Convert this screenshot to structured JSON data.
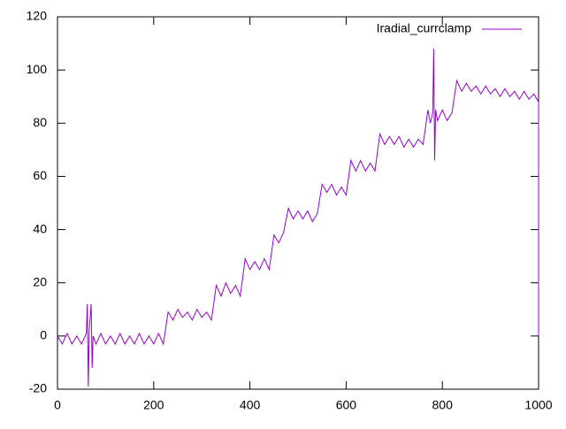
{
  "chart_data": {
    "type": "line",
    "xlim": [
      0,
      1000
    ],
    "ylim": [
      -20,
      120
    ],
    "xticks": [
      0,
      200,
      400,
      600,
      800,
      1000
    ],
    "yticks": [
      -20,
      0,
      20,
      40,
      60,
      80,
      100,
      120
    ],
    "legend": "top-right",
    "series": [
      {
        "name": "Iradial_currclamp",
        "color": "#9400d3",
        "x": [
          0,
          10,
          20,
          30,
          40,
          50,
          60,
          62,
          64,
          66,
          70,
          72,
          74,
          80,
          90,
          100,
          110,
          120,
          130,
          140,
          150,
          160,
          170,
          180,
          190,
          200,
          210,
          220,
          230,
          240,
          250,
          260,
          270,
          280,
          290,
          300,
          310,
          320,
          330,
          340,
          350,
          360,
          370,
          380,
          390,
          400,
          410,
          420,
          430,
          440,
          450,
          460,
          470,
          480,
          490,
          500,
          510,
          520,
          530,
          540,
          550,
          560,
          570,
          580,
          590,
          600,
          610,
          620,
          630,
          640,
          650,
          660,
          670,
          680,
          690,
          700,
          710,
          720,
          730,
          740,
          750,
          760,
          770,
          775,
          780,
          782,
          784,
          786,
          790,
          800,
          810,
          820,
          830,
          840,
          850,
          860,
          870,
          880,
          890,
          900,
          910,
          920,
          930,
          940,
          950,
          960,
          970,
          980,
          990,
          1000,
          1000
        ],
        "values": [
          0,
          -3,
          1,
          -3,
          0,
          -3,
          1,
          12,
          -19,
          2,
          12,
          -12,
          0,
          -3,
          1,
          -3,
          0,
          -3,
          1,
          -3,
          0,
          -3,
          1,
          -3,
          0,
          -3,
          1,
          -3,
          9,
          6,
          10,
          7,
          9,
          6,
          10,
          7,
          9,
          6,
          19,
          15,
          20,
          16,
          19,
          15,
          29,
          25,
          28,
          25,
          29,
          25,
          38,
          35,
          39,
          48,
          44,
          47,
          44,
          47,
          43,
          46,
          57,
          54,
          57,
          53,
          56,
          53,
          66,
          62,
          66,
          62,
          65,
          62,
          76,
          72,
          75,
          72,
          75,
          71,
          74,
          71,
          74,
          72,
          85,
          80,
          84,
          108,
          66,
          85,
          81,
          85,
          81,
          84,
          96,
          92,
          95,
          92,
          94,
          91,
          94,
          91,
          93,
          90,
          93,
          90,
          92,
          89,
          92,
          89,
          91,
          88,
          0
        ]
      }
    ]
  }
}
